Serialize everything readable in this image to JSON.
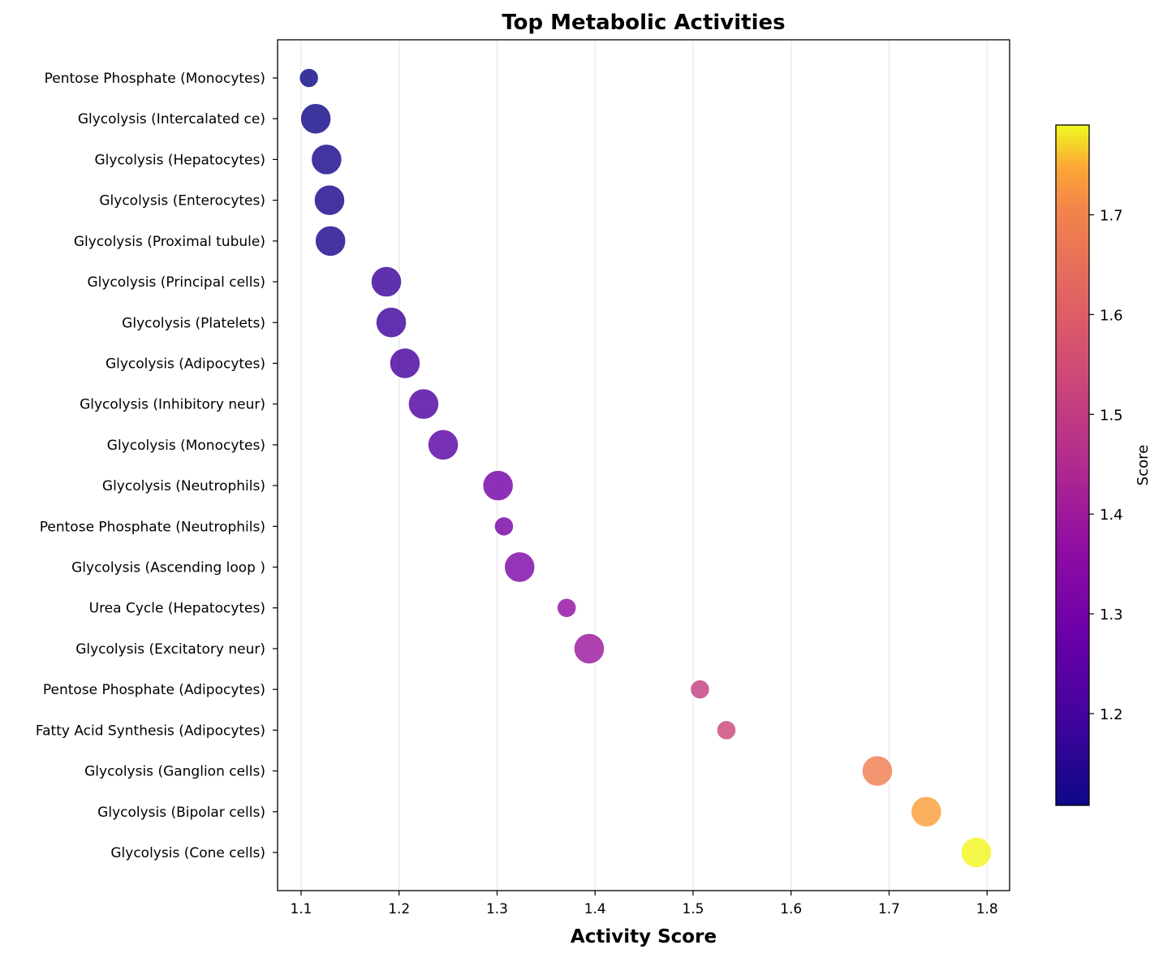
{
  "chart_data": {
    "type": "scatter",
    "title": "Top Metabolic Activities",
    "xlabel": "Activity Score",
    "ylabel": "",
    "xlim": [
      1.076,
      1.823
    ],
    "xticks": [
      1.1,
      1.2,
      1.3,
      1.4,
      1.5,
      1.6,
      1.7,
      1.8
    ],
    "grid": "vertical",
    "colormap": "plasma",
    "colorbar": {
      "label": "Score",
      "range": [
        1.108,
        1.79
      ],
      "ticks": [
        1.2,
        1.3,
        1.4,
        1.5,
        1.6,
        1.7
      ]
    },
    "points": [
      {
        "label": "Pentose Phosphate (Monocytes)",
        "x": 1.108,
        "size": "small"
      },
      {
        "label": "Glycolysis (Intercalated ce)",
        "x": 1.115,
        "size": "large"
      },
      {
        "label": "Glycolysis (Hepatocytes)",
        "x": 1.126,
        "size": "large"
      },
      {
        "label": "Glycolysis (Enterocytes)",
        "x": 1.129,
        "size": "large"
      },
      {
        "label": "Glycolysis (Proximal tubule)",
        "x": 1.13,
        "size": "large"
      },
      {
        "label": "Glycolysis (Principal cells)",
        "x": 1.187,
        "size": "large"
      },
      {
        "label": "Glycolysis (Platelets)",
        "x": 1.192,
        "size": "large"
      },
      {
        "label": "Glycolysis (Adipocytes)",
        "x": 1.206,
        "size": "large"
      },
      {
        "label": "Glycolysis (Inhibitory neur)",
        "x": 1.225,
        "size": "large"
      },
      {
        "label": "Glycolysis (Monocytes)",
        "x": 1.245,
        "size": "large"
      },
      {
        "label": "Glycolysis (Neutrophils)",
        "x": 1.301,
        "size": "large"
      },
      {
        "label": "Pentose Phosphate (Neutrophils)",
        "x": 1.307,
        "size": "small"
      },
      {
        "label": "Glycolysis (Ascending loop )",
        "x": 1.323,
        "size": "large"
      },
      {
        "label": "Urea Cycle (Hepatocytes)",
        "x": 1.371,
        "size": "small"
      },
      {
        "label": "Glycolysis (Excitatory neur)",
        "x": 1.394,
        "size": "large"
      },
      {
        "label": "Pentose Phosphate (Adipocytes)",
        "x": 1.507,
        "size": "small"
      },
      {
        "label": "Fatty Acid Synthesis (Adipocytes)",
        "x": 1.534,
        "size": "small"
      },
      {
        "label": "Glycolysis (Ganglion cells)",
        "x": 1.688,
        "size": "large"
      },
      {
        "label": "Glycolysis (Bipolar cells)",
        "x": 1.738,
        "size": "large"
      },
      {
        "label": "Glycolysis (Cone cells)",
        "x": 1.789,
        "size": "large"
      }
    ]
  }
}
